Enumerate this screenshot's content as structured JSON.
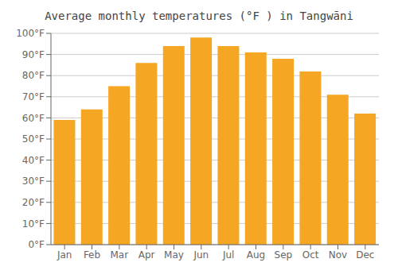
{
  "chart_data": {
    "type": "bar",
    "title": "Average monthly temperatures (°F ) in Tangwāni",
    "categories": [
      "Jan",
      "Feb",
      "Mar",
      "Apr",
      "May",
      "Jun",
      "Jul",
      "Aug",
      "Sep",
      "Oct",
      "Nov",
      "Dec"
    ],
    "values": [
      59,
      64,
      75,
      86,
      94,
      98,
      94,
      91,
      88,
      82,
      71,
      62
    ],
    "color": "#F5A623",
    "ylim": [
      0,
      100
    ],
    "yticks": [
      {
        "value": 0,
        "label": "0°F"
      },
      {
        "value": 10,
        "label": "10°F"
      },
      {
        "value": 20,
        "label": "20°F"
      },
      {
        "value": 30,
        "label": "30°F"
      },
      {
        "value": 40,
        "label": "40°F"
      },
      {
        "value": 50,
        "label": "50°F"
      },
      {
        "value": 60,
        "label": "60°F"
      },
      {
        "value": 70,
        "label": "70°F"
      },
      {
        "value": 80,
        "label": "80°F"
      },
      {
        "value": 90,
        "label": "90°F"
      },
      {
        "value": 100,
        "label": "100°F"
      }
    ],
    "grid": true
  }
}
